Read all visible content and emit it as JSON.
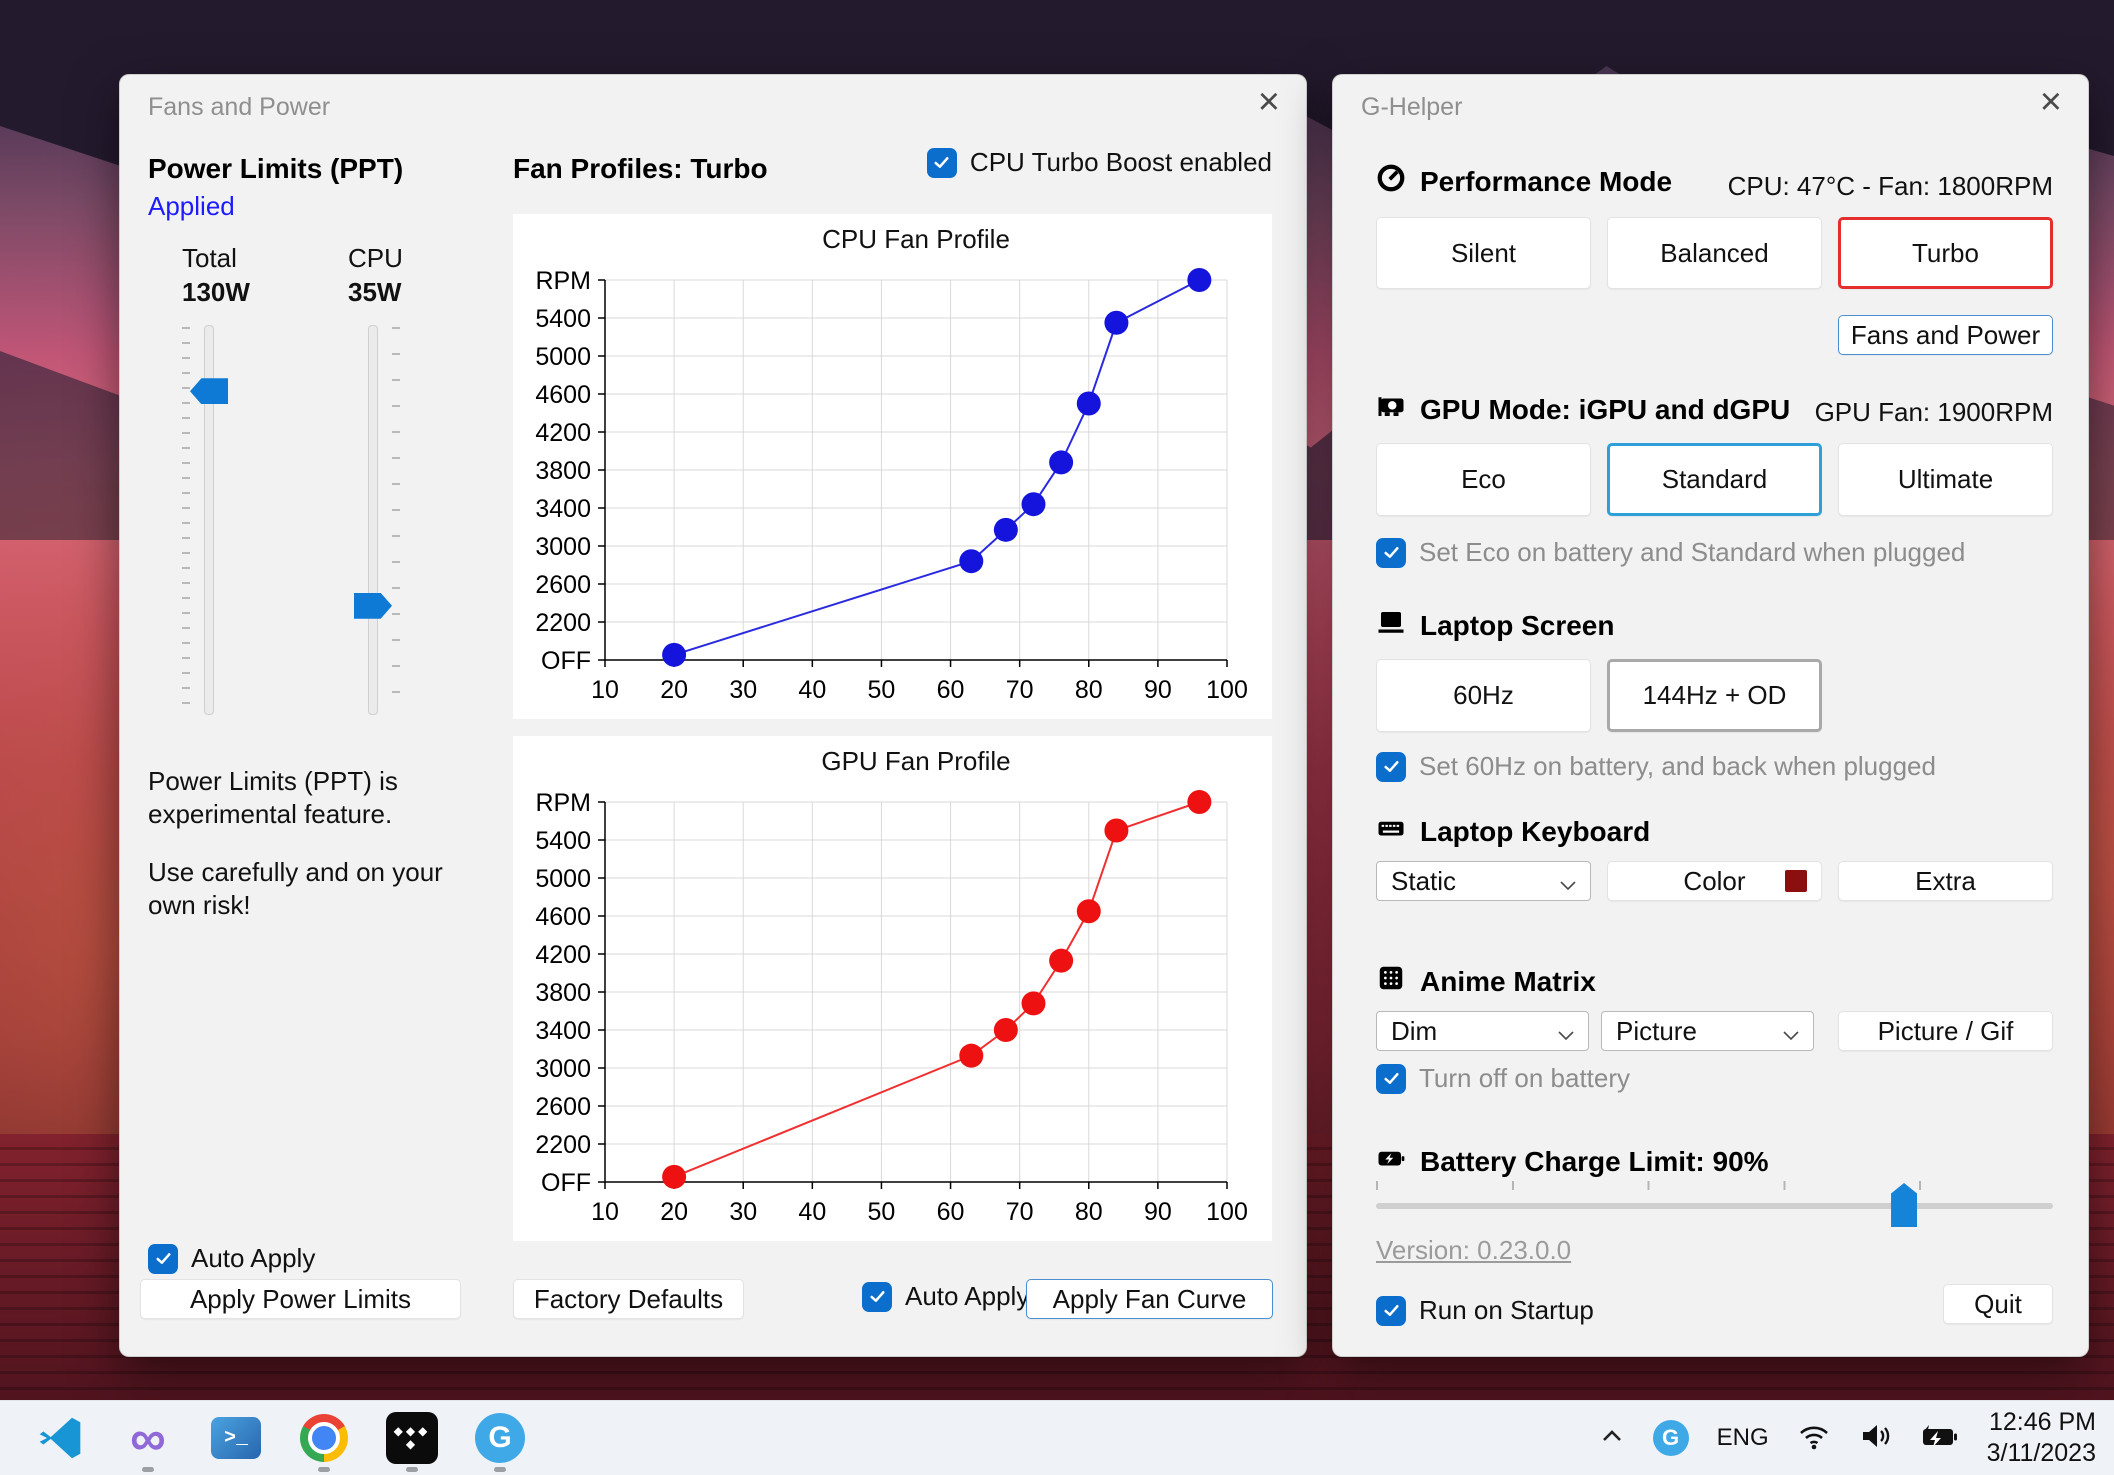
{
  "glyphs": {
    "close": "×",
    "infinity": "∞",
    "tidal_row": "◆◆◆",
    "tidal_bottom": "◆",
    "powershell": ">_",
    "g_letter": "G"
  },
  "colors": {
    "accent_checkbox": "#0b6ecc",
    "applied_blue": "#1c1cff",
    "turbo_selected_red": "#e62e2e",
    "standard_selected_blue": "#2f9fd8",
    "screen_selected_gray": "#a9a9a9",
    "slider_thumb_blue": "#0f7ad6",
    "keyboard_swatch": "#8b0f0f"
  },
  "left_window": {
    "title": "Fans and Power",
    "power_limits": {
      "heading": "Power Limits (PPT)",
      "status": "Applied",
      "total_label": "Total",
      "total_value": "130W",
      "cpu_label": "CPU",
      "cpu_value": "35W",
      "total_slider_percent": 17,
      "cpu_slider_percent": 72,
      "warning1": "Power Limits (PPT) is experimental feature.",
      "warning2": "Use carefully and on your own risk!",
      "auto_apply_label": "Auto Apply",
      "apply_button": "Apply Power Limits"
    },
    "fan_profiles": {
      "heading": "Fan Profiles: Turbo",
      "turbo_checkbox_label": "CPU Turbo Boost enabled",
      "factory_button": "Factory Defaults",
      "auto_apply_label": "Auto Apply",
      "apply_button": "Apply Fan Curve"
    }
  },
  "chart_data": [
    {
      "type": "line",
      "title": "CPU Fan Profile",
      "y_top_label": "RPM",
      "y_ticks": [
        "OFF",
        "2200",
        "2600",
        "3000",
        "3400",
        "3800",
        "4200",
        "4600",
        "5000",
        "5400"
      ],
      "x_ticks": [
        10,
        20,
        30,
        40,
        50,
        60,
        70,
        80,
        90,
        100
      ],
      "xlabel": "",
      "ylabel": "RPM",
      "grid": true,
      "line_color": "#2a2ae0",
      "point_color": "#1414dd",
      "points": [
        {
          "temp": 20,
          "rpm": 300
        },
        {
          "temp": 63,
          "rpm": 2840
        },
        {
          "temp": 68,
          "rpm": 3170
        },
        {
          "temp": 72,
          "rpm": 3440
        },
        {
          "temp": 76,
          "rpm": 3880
        },
        {
          "temp": 80,
          "rpm": 4500
        },
        {
          "temp": 84,
          "rpm": 5350
        },
        {
          "temp": 96,
          "rpm": 5800
        }
      ]
    },
    {
      "type": "line",
      "title": "GPU Fan Profile",
      "y_top_label": "RPM",
      "y_ticks": [
        "OFF",
        "2200",
        "2600",
        "3000",
        "3400",
        "3800",
        "4200",
        "4600",
        "5000",
        "5400"
      ],
      "x_ticks": [
        10,
        20,
        30,
        40,
        50,
        60,
        70,
        80,
        90,
        100
      ],
      "xlabel": "",
      "ylabel": "RPM",
      "grid": true,
      "line_color": "#f03030",
      "point_color": "#ee1111",
      "points": [
        {
          "temp": 20,
          "rpm": 300
        },
        {
          "temp": 63,
          "rpm": 3130
        },
        {
          "temp": 68,
          "rpm": 3400
        },
        {
          "temp": 72,
          "rpm": 3680
        },
        {
          "temp": 76,
          "rpm": 4130
        },
        {
          "temp": 80,
          "rpm": 4650
        },
        {
          "temp": 84,
          "rpm": 5500
        },
        {
          "temp": 96,
          "rpm": 5800
        }
      ]
    }
  ],
  "right_window": {
    "title": "G-Helper",
    "performance": {
      "heading": "Performance Mode",
      "status": "CPU: 47°C  -  Fan: 1800RPM",
      "silent": "Silent",
      "balanced": "Balanced",
      "turbo": "Turbo",
      "selected": "Turbo",
      "fans_power_button": "Fans and Power"
    },
    "gpu": {
      "heading": "GPU Mode: iGPU and dGPU",
      "status": "GPU Fan: 1900RPM",
      "eco": "Eco",
      "standard": "Standard",
      "ultimate": "Ultimate",
      "selected": "Standard",
      "checkbox_label": "Set Eco on battery and Standard when plugged"
    },
    "screen": {
      "heading": "Laptop Screen",
      "hz60": "60Hz",
      "hz144": "144Hz + OD",
      "selected": "144Hz + OD",
      "checkbox_label": "Set 60Hz on battery, and back when plugged"
    },
    "keyboard": {
      "heading": "Laptop Keyboard",
      "mode_dropdown": "Static",
      "color_button": "Color",
      "swatch_color": "#8b0f0f",
      "extra_button": "Extra"
    },
    "anime": {
      "heading": "Anime Matrix",
      "brightness_dropdown": "Dim",
      "mode_dropdown": "Picture",
      "picture_button": "Picture / Gif",
      "checkbox_label": "Turn off on battery"
    },
    "battery": {
      "heading": "Battery Charge Limit: 90%",
      "limit_percent": 90,
      "slider_percent": 78
    },
    "footer": {
      "version": "Version: 0.23.0.0",
      "startup_label": "Run on Startup",
      "quit_button": "Quit"
    }
  },
  "taskbar": {
    "icons": [
      {
        "name": "vscode",
        "running": false
      },
      {
        "name": "visual-studio",
        "running": true
      },
      {
        "name": "powershell",
        "running": false
      },
      {
        "name": "chrome",
        "running": true
      },
      {
        "name": "tidal",
        "running": true
      },
      {
        "name": "g-helper",
        "running": true
      }
    ],
    "tray": {
      "lang": "ENG",
      "time": "12:46 PM",
      "date": "3/11/2023"
    }
  }
}
